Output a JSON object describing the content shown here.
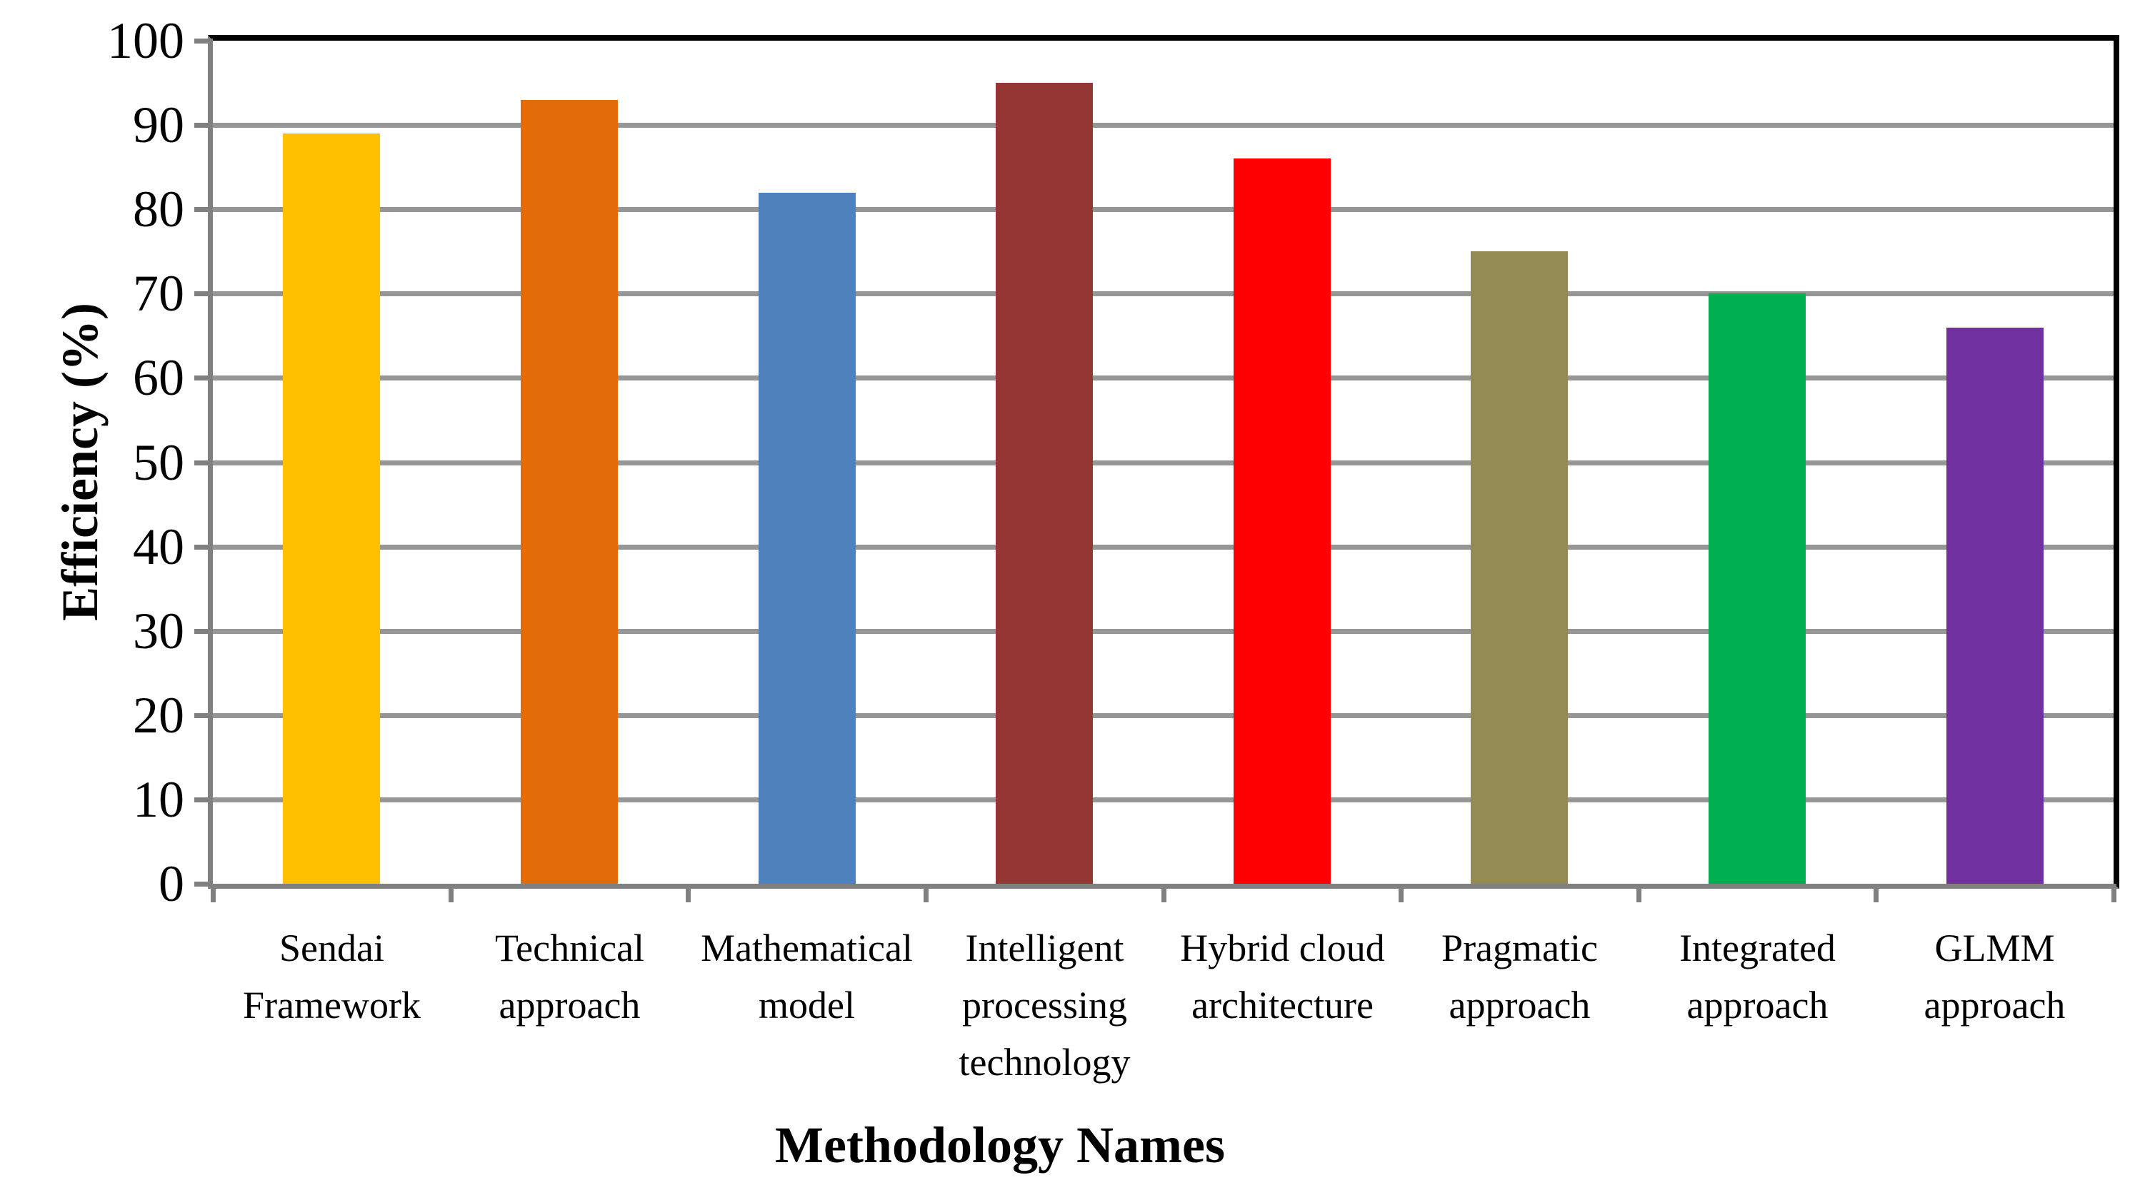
{
  "chart_data": {
    "type": "bar",
    "title": "",
    "xlabel": "Methodology Names",
    "ylabel": "Efficiency (%)",
    "categories": [
      "Sendai Framework",
      "Technical approach",
      "Mathematical model",
      "Intelligent processing technology",
      "Hybrid cloud architecture",
      "Pragmatic approach",
      "Integrated approach",
      "GLMM approach"
    ],
    "values": [
      89,
      93,
      82,
      95,
      86,
      75,
      70,
      66
    ],
    "bar_colors": [
      "#FFC000",
      "#E36C0A",
      "#4F81BD",
      "#943634",
      "#FF0000",
      "#948A54",
      "#00B050",
      "#7030A0"
    ],
    "ylim": [
      0,
      100
    ],
    "ytick_step": 10,
    "grid": true,
    "gridline_color": "#969696",
    "axis_color": "#808080",
    "border_color": "#000000",
    "legend": "none"
  }
}
